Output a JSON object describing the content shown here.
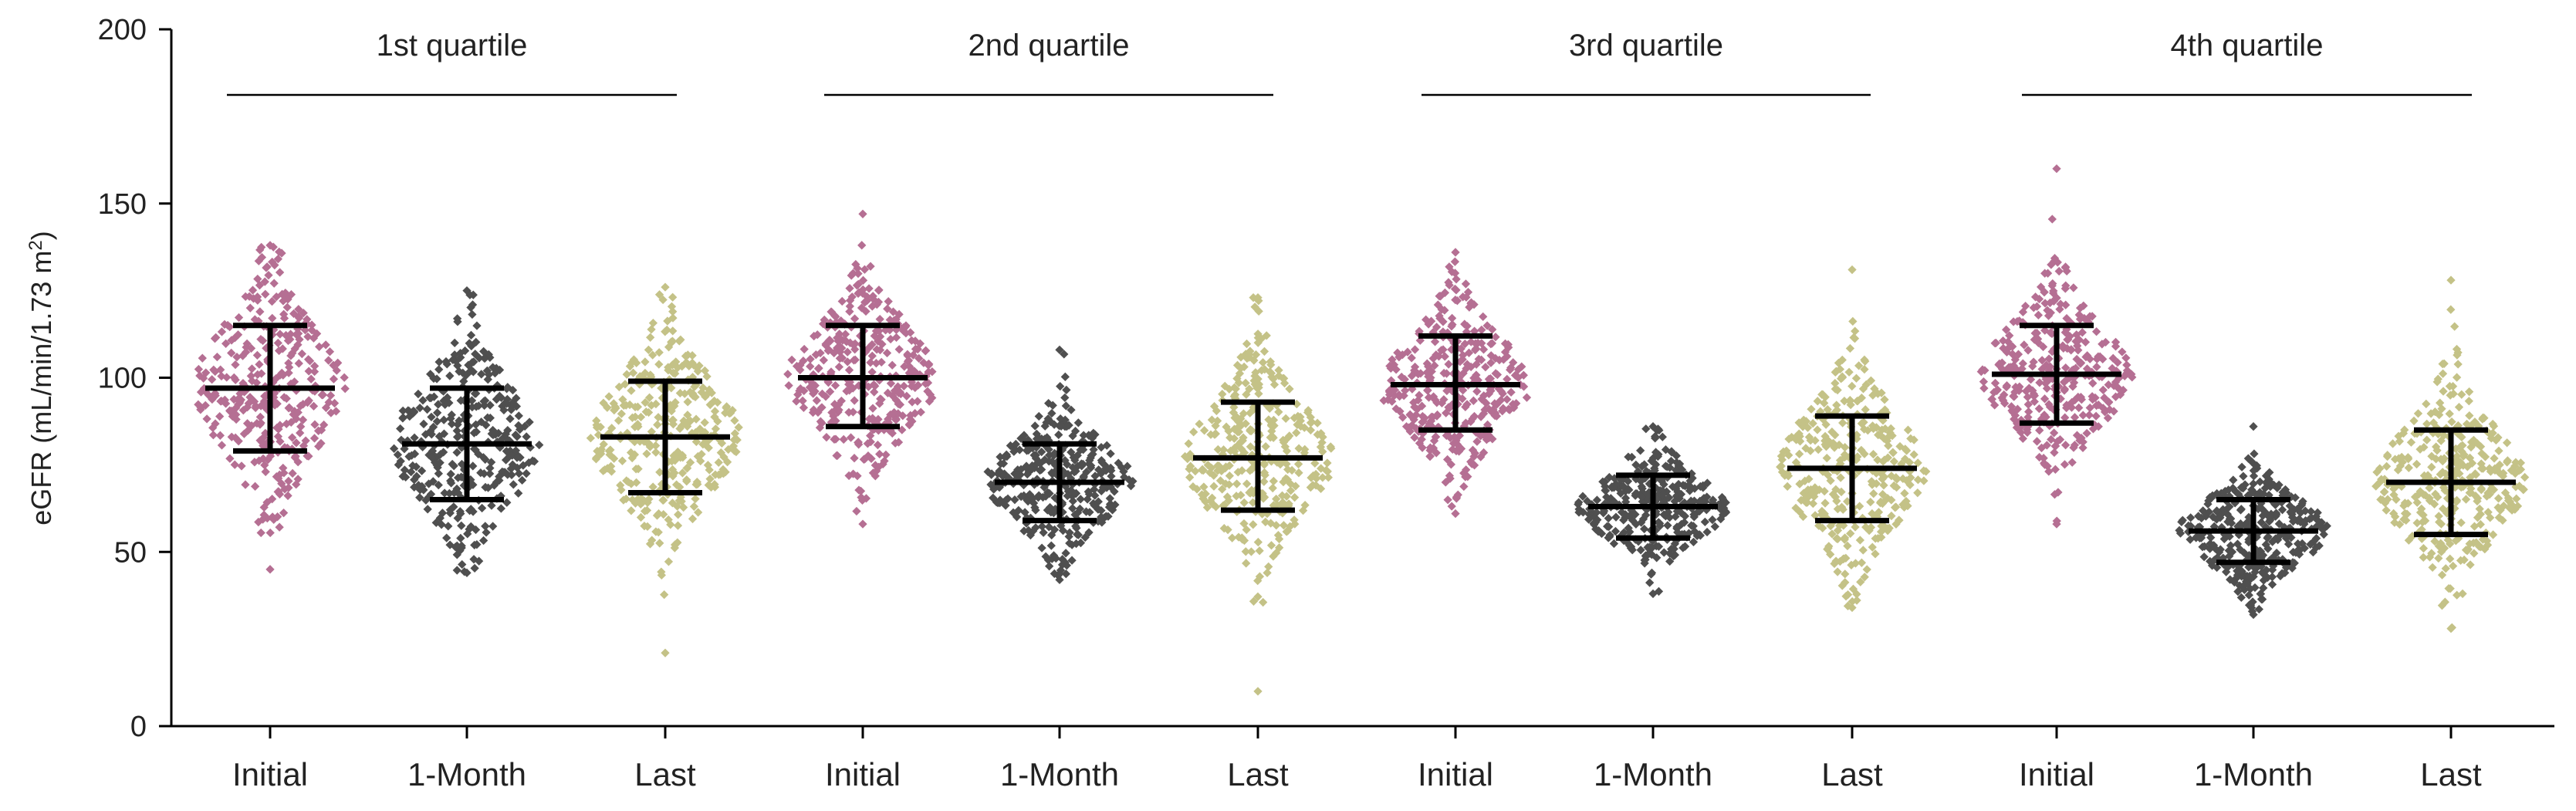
{
  "chart_data": {
    "type": "scatter",
    "subtype": "beeswarm-dot-plot-with-mean-and-sd",
    "title": "",
    "ylabel": "eGFR (mL/min/1.73 m²)",
    "ylabel_parts": {
      "main": "eGFR (mL/min/1.73 m",
      "sup": "2",
      "end": ")"
    },
    "ylim": [
      0,
      200
    ],
    "yticks": [
      0,
      50,
      100,
      150,
      200
    ],
    "grid": false,
    "legend": "none",
    "colors": {
      "Initial": "#b56f93",
      "1-Month": "#4f4f4f",
      "Last": "#c4c287"
    },
    "groups": [
      {
        "name": "1st quartile",
        "series": [
          {
            "category": "Initial",
            "mean": 97,
            "sd_low": 79,
            "sd_high": 115,
            "min": 45,
            "max": 138
          },
          {
            "category": "1-Month",
            "mean": 81,
            "sd_low": 65,
            "sd_high": 97,
            "min": 44,
            "max": 125
          },
          {
            "category": "Last",
            "mean": 83,
            "sd_low": 67,
            "sd_high": 99,
            "min": 21,
            "max": 126
          }
        ]
      },
      {
        "name": "2nd quartile",
        "series": [
          {
            "category": "Initial",
            "mean": 100,
            "sd_low": 86,
            "sd_high": 115,
            "min": 58,
            "max": 147
          },
          {
            "category": "1-Month",
            "mean": 70,
            "sd_low": 59,
            "sd_high": 81,
            "min": 42,
            "max": 108
          },
          {
            "category": "Last",
            "mean": 77,
            "sd_low": 62,
            "sd_high": 93,
            "min": 10,
            "max": 123
          }
        ]
      },
      {
        "name": "3rd quartile",
        "series": [
          {
            "category": "Initial",
            "mean": 98,
            "sd_low": 85,
            "sd_high": 112,
            "min": 61,
            "max": 136
          },
          {
            "category": "1-Month",
            "mean": 63,
            "sd_low": 54,
            "sd_high": 72,
            "min": 38,
            "max": 86
          },
          {
            "category": "Last",
            "mean": 74,
            "sd_low": 59,
            "sd_high": 89,
            "min": 34,
            "max": 131
          }
        ]
      },
      {
        "name": "4th quartile",
        "series": [
          {
            "category": "Initial",
            "mean": 101,
            "sd_low": 87,
            "sd_high": 115,
            "min": 58,
            "max": 160
          },
          {
            "category": "1-Month",
            "mean": 56,
            "sd_low": 47,
            "sd_high": 65,
            "min": 32,
            "max": 86
          },
          {
            "category": "Last",
            "mean": 70,
            "sd_low": 55,
            "sd_high": 85,
            "min": 28,
            "max": 128
          }
        ]
      }
    ]
  }
}
